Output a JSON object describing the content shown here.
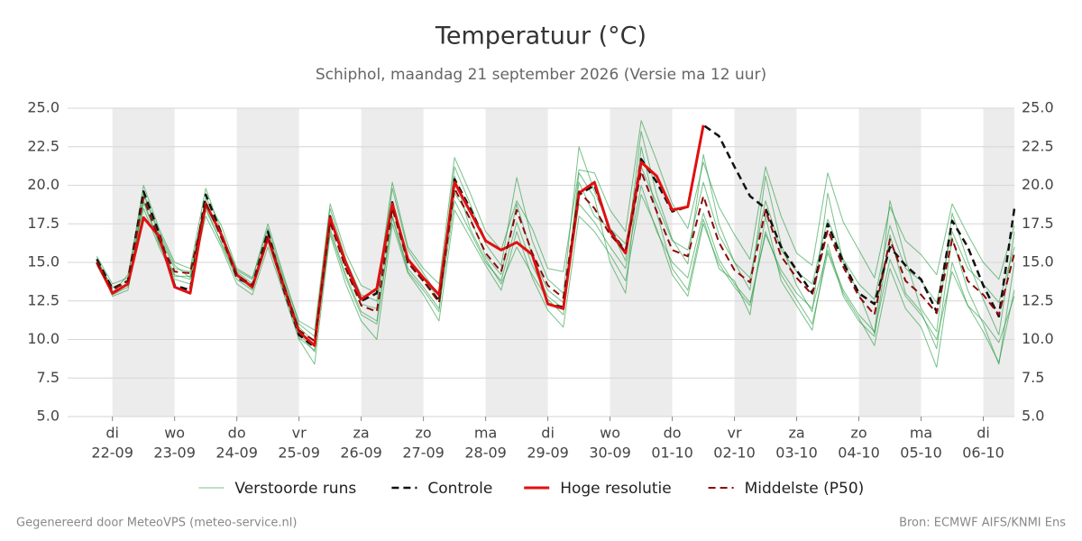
{
  "chart_data": {
    "type": "line",
    "title": "Temperatuur (°C)",
    "subtitle": "Schiphol, maandag 21 september 2026 (Versie ma 12 uur)",
    "footer_left": "Gegenereerd door MeteoVPS (meteo-service.nl)",
    "footer_right": "Bron: ECMWF AIFS/KNMI Ens",
    "x": [
      -0.25,
      0,
      0.25,
      0.5,
      0.75,
      1,
      1.25,
      1.5,
      1.75,
      2,
      2.25,
      2.5,
      2.75,
      3,
      3.25,
      3.5,
      3.75,
      4,
      4.25,
      4.5,
      4.75,
      5,
      5.25,
      5.5,
      5.75,
      6,
      6.25,
      6.5,
      6.75,
      7,
      7.25,
      7.5,
      7.75,
      8,
      8.25,
      8.5,
      8.75,
      9,
      9.25,
      9.5,
      9.75,
      10,
      10.25,
      10.5,
      10.75,
      11,
      11.25,
      11.5,
      11.75,
      12,
      12.25,
      12.5,
      12.75,
      13,
      13.25,
      13.5,
      13.75,
      14,
      14.25,
      14.5
    ],
    "xlim": [
      -0.72,
      14.5
    ],
    "xticks": [
      {
        "value": 0,
        "label": [
          "di",
          "22-09"
        ]
      },
      {
        "value": 1,
        "label": [
          "wo",
          "23-09"
        ]
      },
      {
        "value": 2,
        "label": [
          "do",
          "24-09"
        ]
      },
      {
        "value": 3,
        "label": [
          "vr",
          "25-09"
        ]
      },
      {
        "value": 4,
        "label": [
          "za",
          "26-09"
        ]
      },
      {
        "value": 5,
        "label": [
          "zo",
          "27-09"
        ]
      },
      {
        "value": 6,
        "label": [
          "ma",
          "28-09"
        ]
      },
      {
        "value": 7,
        "label": [
          "di",
          "29-09"
        ]
      },
      {
        "value": 8,
        "label": [
          "wo",
          "30-09"
        ]
      },
      {
        "value": 9,
        "label": [
          "do",
          "01-10"
        ]
      },
      {
        "value": 10,
        "label": [
          "vr",
          "02-10"
        ]
      },
      {
        "value": 11,
        "label": [
          "za",
          "03-10"
        ]
      },
      {
        "value": 12,
        "label": [
          "zo",
          "04-10"
        ]
      },
      {
        "value": 13,
        "label": [
          "ma",
          "05-10"
        ]
      },
      {
        "value": 14,
        "label": [
          "di",
          "06-10"
        ]
      }
    ],
    "shaded_days": [
      0,
      2,
      4,
      6,
      8,
      10,
      12,
      14
    ],
    "ylim": [
      5,
      25
    ],
    "yticks": [
      {
        "value": 5,
        "label": "5.0"
      },
      {
        "value": 7.5,
        "label": "7.5"
      },
      {
        "value": 10,
        "label": "10.0"
      },
      {
        "value": 12.5,
        "label": "12.5"
      },
      {
        "value": 15,
        "label": "15.0"
      },
      {
        "value": 17.5,
        "label": "17.5"
      },
      {
        "value": 20,
        "label": "20.0"
      },
      {
        "value": 22.5,
        "label": "22.5"
      },
      {
        "value": 25,
        "label": "25.0"
      }
    ],
    "y2lim": [
      5,
      25
    ],
    "y2ticks": [
      {
        "value": 5,
        "label": "5.0"
      },
      {
        "value": 7.5,
        "label": "7.5"
      },
      {
        "value": 10,
        "label": "10.0"
      },
      {
        "value": 12.5,
        "label": "12.5"
      },
      {
        "value": 15,
        "label": "15.0"
      },
      {
        "value": 17.5,
        "label": "17.5"
      },
      {
        "value": 20,
        "label": "20.0"
      },
      {
        "value": 22.5,
        "label": "22.5"
      },
      {
        "value": 25,
        "label": "25.0"
      }
    ],
    "grid": true,
    "series": [
      {
        "name": "Verstoorde runs",
        "color": "#1e9a3c",
        "width": 1,
        "dash": false,
        "values": [
          [
            15.4,
            13.6,
            14.0,
            20.0,
            17.2,
            15.0,
            14.6,
            19.8,
            17.0,
            14.5,
            13.9,
            17.5,
            14.2,
            11.0,
            10.2,
            18.5,
            15.2,
            12.9,
            12.5,
            19.8,
            15.8,
            14.3,
            12.8,
            21.2,
            18.8,
            16.2,
            14.8,
            20.5,
            16.4,
            13.9,
            13.0,
            22.5,
            19.6,
            17.2,
            15.1,
            23.5,
            19.4,
            16.5,
            14.9,
            22.0,
            17.5,
            15.0,
            13.2,
            20.6,
            16.2,
            13.5,
            11.8,
            19.5,
            15.0,
            13.0,
            10.4,
            19.0,
            15.2,
            12.0,
            10.5,
            18.2,
            15.1,
            12.6,
            10.3,
            17.0
          ],
          [
            15.2,
            12.8,
            13.2,
            18.5,
            16.0,
            13.9,
            13.6,
            18.0,
            16.0,
            13.6,
            12.9,
            16.0,
            13.0,
            10.0,
            8.4,
            16.8,
            13.6,
            11.2,
            10.0,
            17.5,
            14.3,
            12.9,
            11.2,
            18.4,
            16.6,
            14.8,
            13.2,
            17.0,
            14.0,
            11.9,
            10.8,
            18.0,
            17.0,
            15.5,
            13.8,
            19.4,
            17.2,
            14.2,
            12.8,
            17.5,
            14.9,
            13.4,
            12.2,
            17.0,
            14.2,
            12.6,
            11.0,
            15.6,
            13.0,
            11.4,
            9.6,
            14.6,
            12.0,
            10.8,
            8.2,
            15.0,
            12.2,
            10.5,
            8.5,
            13.2
          ],
          [
            14.8,
            13.0,
            14.2,
            19.5,
            17.0,
            14.8,
            14.0,
            19.2,
            17.4,
            14.6,
            14.0,
            17.2,
            14.0,
            11.2,
            10.6,
            18.8,
            15.6,
            13.5,
            13.0,
            20.2,
            16.0,
            14.6,
            13.6,
            21.8,
            19.5,
            17.0,
            15.8,
            19.0,
            17.2,
            14.6,
            14.4,
            21.0,
            20.8,
            18.4,
            17.0,
            24.2,
            21.6,
            18.8,
            17.2,
            21.5,
            18.6,
            16.8,
            15.2,
            21.2,
            18.0,
            15.6,
            14.8,
            20.8,
            17.6,
            15.8,
            14.0,
            18.6,
            16.4,
            15.5,
            14.2,
            18.8,
            16.8,
            15.0,
            13.9,
            17.4
          ],
          [
            15.1,
            13.4,
            13.5,
            18.9,
            16.2,
            14.1,
            14.1,
            18.6,
            16.2,
            13.9,
            13.2,
            16.4,
            13.2,
            10.4,
            9.2,
            17.2,
            14.2,
            11.8,
            11.2,
            18.0,
            14.6,
            13.4,
            12.0,
            19.0,
            17.0,
            15.0,
            13.8,
            17.6,
            14.8,
            12.8,
            12.0,
            18.8,
            17.6,
            16.0,
            14.6,
            20.0,
            17.0,
            15.0,
            14.0,
            18.2,
            15.2,
            13.6,
            12.4,
            16.8,
            14.5,
            13.0,
            12.0,
            15.8,
            13.2,
            11.6,
            10.5,
            15.2,
            12.8,
            11.6,
            10.0,
            14.4,
            12.2,
            11.2,
            9.8,
            12.8
          ],
          [
            15.3,
            13.1,
            13.6,
            19.4,
            16.8,
            14.6,
            14.4,
            19.0,
            16.7,
            14.4,
            13.6,
            16.9,
            13.8,
            10.8,
            9.8,
            17.8,
            14.8,
            12.3,
            12.0,
            18.7,
            15.2,
            14.0,
            12.6,
            19.5,
            17.9,
            15.4,
            14.2,
            18.8,
            15.4,
            13.2,
            12.4,
            20.2,
            18.0,
            17.2,
            16.2,
            21.2,
            18.8,
            16.4,
            15.8,
            20.2,
            16.8,
            15.0,
            14.0,
            19.0,
            15.8,
            14.4,
            13.6,
            17.8,
            15.2,
            13.6,
            12.6,
            17.4,
            14.6,
            13.8,
            12.4,
            17.0,
            14.6,
            13.6,
            12.4,
            16.0
          ],
          [
            14.9,
            12.9,
            13.4,
            19.0,
            16.3,
            14.2,
            13.9,
            18.4,
            16.3,
            14.1,
            13.3,
            16.4,
            13.4,
            10.1,
            9.3,
            17.0,
            14.0,
            11.6,
            11.0,
            17.9,
            14.4,
            13.2,
            11.8,
            20.6,
            17.2,
            15.2,
            13.6,
            16.0,
            14.2,
            12.6,
            11.6,
            20.8,
            19.2,
            15.0,
            13.0,
            22.5,
            18.2,
            14.6,
            13.2,
            17.8,
            14.6,
            13.8,
            11.6,
            18.0,
            13.8,
            12.2,
            10.6,
            16.2,
            12.8,
            11.2,
            10.2,
            16.8,
            13.0,
            11.8,
            9.4,
            16.6,
            13.2,
            11.0,
            8.4,
            15.0
          ]
        ]
      },
      {
        "name": "Controle",
        "color": "#111111",
        "width": 2.5,
        "dash": true,
        "values": [
          15.2,
          13.3,
          13.8,
          19.6,
          16.9,
          13.5,
          13.2,
          19.4,
          16.9,
          14.0,
          13.5,
          17.0,
          13.3,
          10.3,
          9.5,
          18.0,
          14.8,
          12.5,
          13.0,
          18.9,
          15.0,
          13.8,
          12.5,
          20.4,
          18.5,
          16.4,
          15.8,
          16.3,
          15.5,
          12.3,
          12.1,
          19.4,
          20.0,
          17.1,
          15.7,
          21.7,
          20.2,
          18.3,
          18.6,
          23.9,
          23.2,
          21.2,
          19.3,
          18.5,
          16.0,
          14.5,
          13.0,
          17.5,
          15.0,
          13.0,
          12.3,
          16.0,
          14.8,
          13.9,
          11.8,
          17.7,
          16.0,
          13.5,
          11.5,
          18.5
        ]
      },
      {
        "name": "Hoge resolutie",
        "color": "#e01010",
        "width": 3,
        "dash": false,
        "values": [
          15.0,
          13.0,
          13.6,
          17.9,
          16.7,
          13.4,
          13.0,
          18.8,
          16.8,
          14.2,
          13.4,
          16.6,
          13.5,
          10.5,
          9.6,
          17.9,
          15.0,
          12.6,
          13.3,
          18.8,
          15.2,
          14.0,
          12.9,
          20.2,
          18.3,
          16.4,
          15.8,
          16.3,
          15.5,
          12.3,
          12.0,
          19.5,
          20.2,
          17.0,
          15.6,
          21.5,
          20.6,
          18.4,
          18.6,
          23.9,
          null,
          null,
          null,
          null,
          null,
          null,
          null,
          null,
          null,
          null,
          null,
          null,
          null,
          null,
          null,
          null,
          null,
          null,
          null,
          null
        ]
      },
      {
        "name": "Middelste (P50)",
        "color": "#8b0a0a",
        "width": 2,
        "dash": true,
        "values": [
          15.0,
          13.2,
          13.8,
          19.2,
          16.5,
          14.4,
          14.3,
          18.9,
          16.6,
          14.2,
          13.5,
          16.7,
          13.6,
          10.6,
          9.9,
          17.6,
          14.6,
          12.2,
          11.8,
          18.5,
          15.0,
          13.8,
          12.4,
          19.8,
          17.8,
          15.6,
          14.4,
          18.4,
          15.6,
          13.5,
          12.7,
          19.6,
          18.5,
          16.8,
          15.7,
          20.9,
          18.3,
          15.8,
          15.4,
          19.3,
          16.3,
          14.5,
          13.7,
          18.4,
          15.4,
          14.0,
          12.9,
          17.1,
          14.7,
          12.8,
          11.6,
          16.5,
          13.8,
          12.9,
          11.7,
          16.5,
          13.8,
          12.9,
          11.6,
          15.6
        ]
      }
    ]
  }
}
